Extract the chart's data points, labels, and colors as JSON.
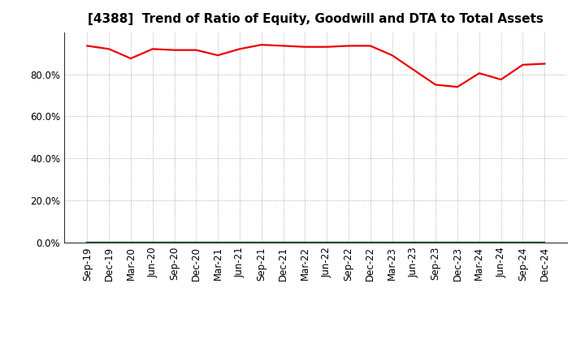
{
  "title": "[4388]  Trend of Ratio of Equity, Goodwill and DTA to Total Assets",
  "x_labels": [
    "Sep-19",
    "Dec-19",
    "Mar-20",
    "Jun-20",
    "Sep-20",
    "Dec-20",
    "Mar-21",
    "Jun-21",
    "Sep-21",
    "Dec-21",
    "Mar-22",
    "Jun-22",
    "Sep-22",
    "Dec-22",
    "Mar-23",
    "Jun-23",
    "Sep-23",
    "Dec-23",
    "Mar-24",
    "Jun-24",
    "Sep-24",
    "Dec-24"
  ],
  "equity": [
    93.5,
    92.0,
    87.5,
    92.0,
    91.5,
    91.5,
    89.0,
    92.0,
    94.0,
    93.5,
    93.0,
    93.0,
    93.5,
    93.5,
    89.0,
    82.0,
    75.0,
    74.0,
    80.5,
    77.5,
    84.5,
    85.0
  ],
  "goodwill": [
    0.05,
    0.05,
    0.05,
    0.05,
    0.05,
    0.05,
    0.05,
    0.05,
    0.05,
    0.05,
    0.05,
    0.05,
    0.05,
    0.05,
    0.05,
    0.05,
    0.05,
    0.05,
    0.05,
    0.05,
    0.05,
    0.05
  ],
  "dta": [
    0.1,
    0.1,
    0.1,
    0.1,
    0.1,
    0.1,
    0.1,
    0.1,
    0.1,
    0.1,
    0.1,
    0.1,
    0.1,
    0.1,
    0.1,
    0.1,
    0.1,
    0.1,
    0.1,
    0.1,
    0.1,
    0.1
  ],
  "equity_color": "#EE0000",
  "goodwill_color": "#0000CC",
  "dta_color": "#006600",
  "ylim": [
    0,
    100
  ],
  "yticks": [
    0,
    20,
    40,
    60,
    80
  ],
  "ytick_labels": [
    "0.0%",
    "20.0%",
    "40.0%",
    "60.0%",
    "80.0%"
  ],
  "background_color": "#FFFFFF",
  "plot_bg_color": "#FFFFFF",
  "grid_color": "#999999",
  "title_fontsize": 11,
  "tick_fontsize": 8.5,
  "legend_fontsize": 9.5,
  "line_width": 1.6
}
